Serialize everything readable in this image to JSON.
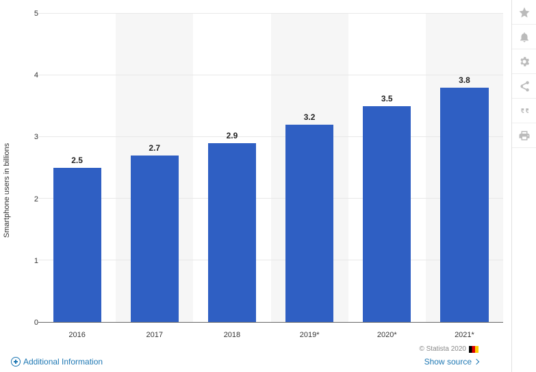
{
  "chart": {
    "type": "bar",
    "y_label": "Smartphone users in billions",
    "categories": [
      "2016",
      "2017",
      "2018",
      "2019*",
      "2020*",
      "2021*"
    ],
    "values": [
      2.5,
      2.7,
      2.9,
      3.2,
      3.5,
      3.8
    ],
    "value_labels": [
      "2.5",
      "2.7",
      "2.9",
      "3.2",
      "3.5",
      "3.8"
    ],
    "bar_color": "#2f5fc3",
    "background_color": "#ffffff",
    "band_color": "#f6f6f6",
    "grid_color": "#e8e8e8",
    "ylim": [
      0,
      5
    ],
    "ytick_step": 1,
    "y_ticks": [
      "0",
      "1",
      "2",
      "3",
      "4",
      "5"
    ],
    "value_fontsize": 12,
    "tick_fontsize": 11,
    "label_fontsize": 11,
    "bar_width": 0.62
  },
  "footer": {
    "copyright": "© Statista 2020",
    "additional_info": "Additional Information",
    "show_source": "Show source"
  },
  "toolbar": {
    "items": [
      {
        "name": "star-icon",
        "title": "Favorite"
      },
      {
        "name": "bell-icon",
        "title": "Notify"
      },
      {
        "name": "gear-icon",
        "title": "Settings"
      },
      {
        "name": "share-icon",
        "title": "Share"
      },
      {
        "name": "quote-icon",
        "title": "Cite"
      },
      {
        "name": "print-icon",
        "title": "Print"
      }
    ]
  }
}
